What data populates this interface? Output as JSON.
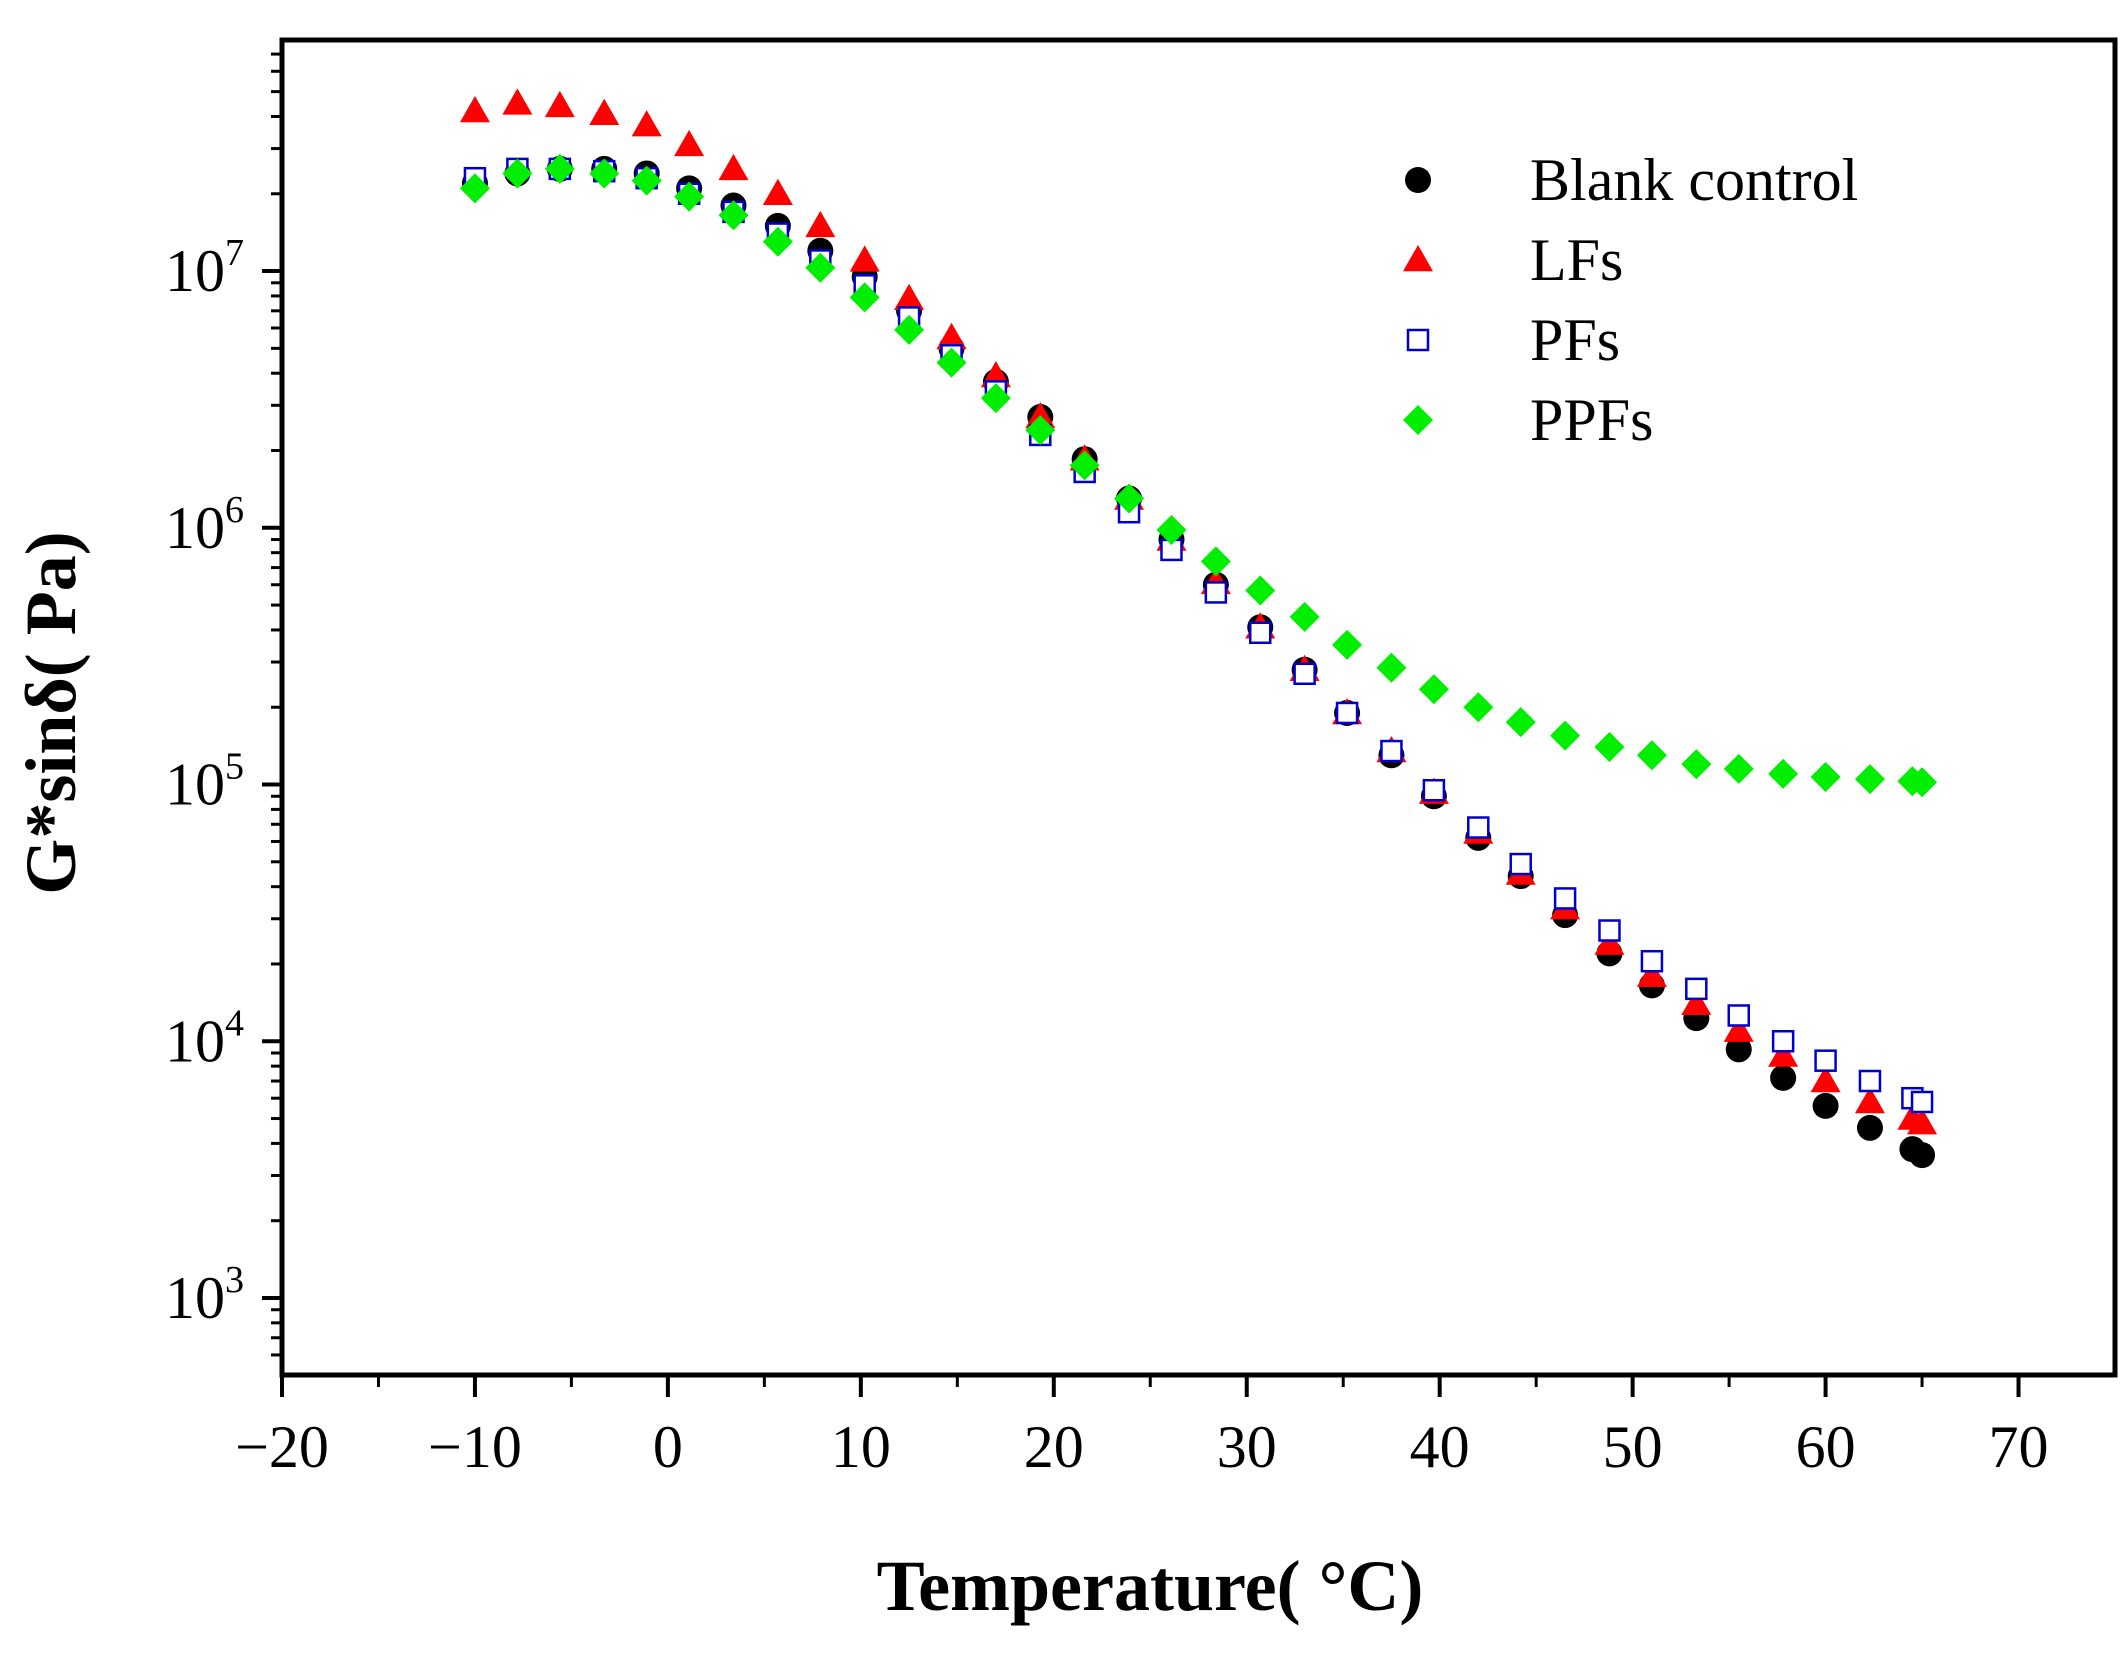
{
  "chart_data": {
    "type": "scatter",
    "xlabel": "Temperature( °C)",
    "ylabel": "G*sinδ( Pa)",
    "xlim": [
      -20,
      75
    ],
    "ylim_log10": [
      2.7,
      7.9
    ],
    "y_scale": "log",
    "x_ticks": [
      -20,
      -10,
      0,
      10,
      20,
      30,
      40,
      50,
      60,
      70
    ],
    "x_tick_labels": [
      "−20",
      "−10",
      "0",
      "10",
      "20",
      "30",
      "40",
      "50",
      "60",
      "70"
    ],
    "y_ticks": [
      {
        "exp": 3,
        "base": "10",
        "sup": "3"
      },
      {
        "exp": 4,
        "base": "10",
        "sup": "4"
      },
      {
        "exp": 5,
        "base": "10",
        "sup": "5"
      },
      {
        "exp": 6,
        "base": "10",
        "sup": "6"
      },
      {
        "exp": 7,
        "base": "10",
        "sup": "7"
      }
    ],
    "legend_position": "top-right",
    "series": [
      {
        "name": "Blank control",
        "marker": "circle",
        "color": "#000000",
        "x": [
          -10,
          -7.8,
          -5.6,
          -3.3,
          -1.1,
          1.1,
          3.4,
          5.7,
          7.9,
          10.2,
          12.5,
          14.7,
          17,
          19.3,
          21.6,
          23.9,
          26.1,
          28.4,
          30.7,
          33,
          35.2,
          37.5,
          39.7,
          42,
          44.2,
          46.5,
          48.8,
          51,
          53.3,
          55.5,
          57.8,
          60,
          62.3,
          64.5,
          65
        ],
        "y": [
          22000000.0,
          24000000.0,
          25000000.0,
          25000000.0,
          24000000.0,
          21000000.0,
          18000000.0,
          15000000.0,
          12000000.0,
          9500000.0,
          7000000.0,
          5000000.0,
          3700000.0,
          2700000.0,
          1850000.0,
          1300000.0,
          900000.0,
          600000.0,
          410000.0,
          280000.0,
          190000.0,
          130000.0,
          90000.0,
          62000.0,
          44000.0,
          31000.0,
          22000.0,
          16500.0,
          12300.0,
          9300.0,
          7200.0,
          5600.0,
          4600.0,
          3800.0,
          3600.0
        ]
      },
      {
        "name": "LFs",
        "marker": "triangle",
        "color": "#ff0000",
        "x": [
          -10,
          -7.8,
          -5.6,
          -3.3,
          -1.1,
          1.1,
          3.4,
          5.7,
          7.9,
          10.2,
          12.5,
          14.7,
          17,
          19.3,
          21.6,
          23.9,
          26.1,
          28.4,
          30.7,
          33,
          35.2,
          37.5,
          39.7,
          42,
          44.2,
          46.5,
          48.8,
          51,
          53.3,
          55.5,
          57.8,
          60,
          62.3,
          64.5,
          65
        ],
        "y": [
          42000000.0,
          45000000.0,
          44000000.0,
          41000000.0,
          37000000.0,
          31000000.0,
          25000000.0,
          20000000.0,
          15000000.0,
          11000000.0,
          7800000.0,
          5500000.0,
          3900000.0,
          2700000.0,
          1850000.0,
          1300000.0,
          900000.0,
          610000.0,
          410000.0,
          280000.0,
          190000.0,
          135000.0,
          93000.0,
          65000.0,
          45000.0,
          33000.0,
          24000.0,
          18000.0,
          14000.0,
          11000.0,
          8800.0,
          7000.0,
          5800.0,
          5000.0,
          4800.0
        ]
      },
      {
        "name": "PFs",
        "marker": "square-open",
        "color": "#0000cc",
        "x": [
          -10,
          -7.8,
          -5.6,
          -3.3,
          -1.1,
          1.1,
          3.4,
          5.7,
          7.9,
          10.2,
          12.5,
          14.7,
          17,
          19.3,
          21.6,
          23.9,
          26.1,
          28.4,
          30.7,
          33,
          35.2,
          37.5,
          39.7,
          42,
          44.2,
          46.5,
          48.8,
          51,
          53.3,
          55.5,
          57.8,
          60,
          62.3,
          64.5,
          65
        ],
        "y": [
          23000000.0,
          25000000.0,
          25000000.0,
          24500000.0,
          23000000.0,
          20000000.0,
          17000000.0,
          14000000.0,
          11000000.0,
          8800000.0,
          6600000.0,
          4700000.0,
          3400000.0,
          2300000.0,
          1650000.0,
          1150000.0,
          820000.0,
          560000.0,
          390000.0,
          270000.0,
          190000.0,
          135000.0,
          95000.0,
          68000.0,
          49000.0,
          36000.0,
          27000.0,
          20500.0,
          16000.0,
          12600.0,
          10000.0,
          8400.0,
          7000.0,
          6000.0,
          5800.0
        ]
      },
      {
        "name": "PPFs",
        "marker": "diamond",
        "color": "#00ee00",
        "x": [
          -10,
          -7.8,
          -5.6,
          -3.3,
          -1.1,
          1.1,
          3.4,
          5.7,
          7.9,
          10.2,
          12.5,
          14.7,
          17,
          19.3,
          21.6,
          23.9,
          26.1,
          28.4,
          30.7,
          33,
          35.2,
          37.5,
          39.7,
          42,
          44.2,
          46.5,
          48.8,
          51,
          53.3,
          55.5,
          57.8,
          60,
          62.3,
          64.5,
          65
        ],
        "y": [
          21000000.0,
          24000000.0,
          25000000.0,
          24000000.0,
          22500000.0,
          19500000.0,
          16500000.0,
          13000000.0,
          10300000.0,
          7900000.0,
          5900000.0,
          4400000.0,
          3200000.0,
          2400000.0,
          1750000.0,
          1300000.0,
          980000.0,
          740000.0,
          570000.0,
          450000.0,
          350000.0,
          285000.0,
          235000.0,
          200000.0,
          175000.0,
          155000.0,
          140000.0,
          130000.0,
          120000.0,
          115000.0,
          110000.0,
          107000.0,
          105000.0,
          103000.0,
          102000.0
        ]
      }
    ]
  }
}
